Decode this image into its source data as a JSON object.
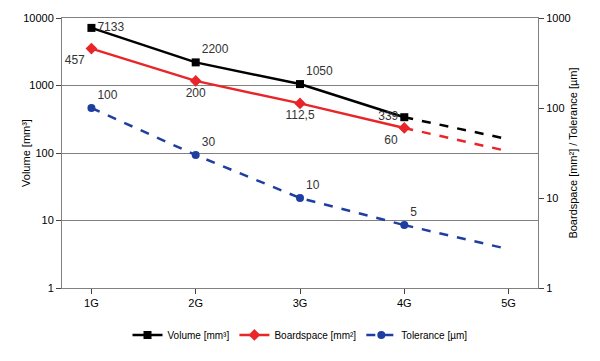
{
  "chart_data": {
    "type": "line",
    "categories": [
      "1G",
      "2G",
      "3G",
      "4G",
      "5G"
    ],
    "ylabel": "Volume [mm³]",
    "y2label": "Boardspace [mm²] / Tolerance [µm]",
    "log": "y",
    "ylim": [
      1,
      10000
    ],
    "yticks": [
      1,
      10,
      100,
      1000,
      10000
    ],
    "y2lim": [
      1,
      1000
    ],
    "y2ticks": [
      1,
      10,
      100,
      1000
    ],
    "grid": true,
    "legend": "bottom",
    "data_labels": true,
    "series": [
      {
        "name": "Volume [mm³]",
        "color": "#000000",
        "marker": "square",
        "line_style": "solid",
        "values": [
          7133,
          2200,
          1050,
          339,
          null
        ],
        "value_labels": [
          "7133",
          "2200",
          "1050",
          "339",
          null
        ]
      },
      {
        "color": "#000000",
        "marker": "none",
        "line_style": "dashed",
        "values": [
          null,
          null,
          null,
          339,
          160
        ]
      },
      {
        "name": "Boardspace [mm²]",
        "color": "#e8262a",
        "marker": "diamond",
        "line_style": "solid",
        "axis": "y2",
        "values": [
          457,
          200,
          112.5,
          60,
          null
        ],
        "value_labels": [
          "457",
          "200",
          "112,5",
          "60",
          null
        ]
      },
      {
        "color": "#e8262a",
        "marker": "none",
        "line_style": "dashed",
        "axis": "y2",
        "values": [
          null,
          null,
          null,
          60,
          33
        ]
      },
      {
        "name": "Tolerance [µm]",
        "color": "#1f3fa0",
        "marker": "circle",
        "line_style": "dashed",
        "axis": "y2",
        "values": [
          100,
          30,
          10,
          5,
          null
        ],
        "value_labels": [
          "100",
          "30",
          "10",
          "5",
          null
        ]
      },
      {
        "color": "#1f3fa0",
        "marker": "none",
        "line_style": "dashed",
        "axis": "y2",
        "values": [
          null,
          null,
          null,
          5,
          2.7
        ]
      }
    ]
  }
}
